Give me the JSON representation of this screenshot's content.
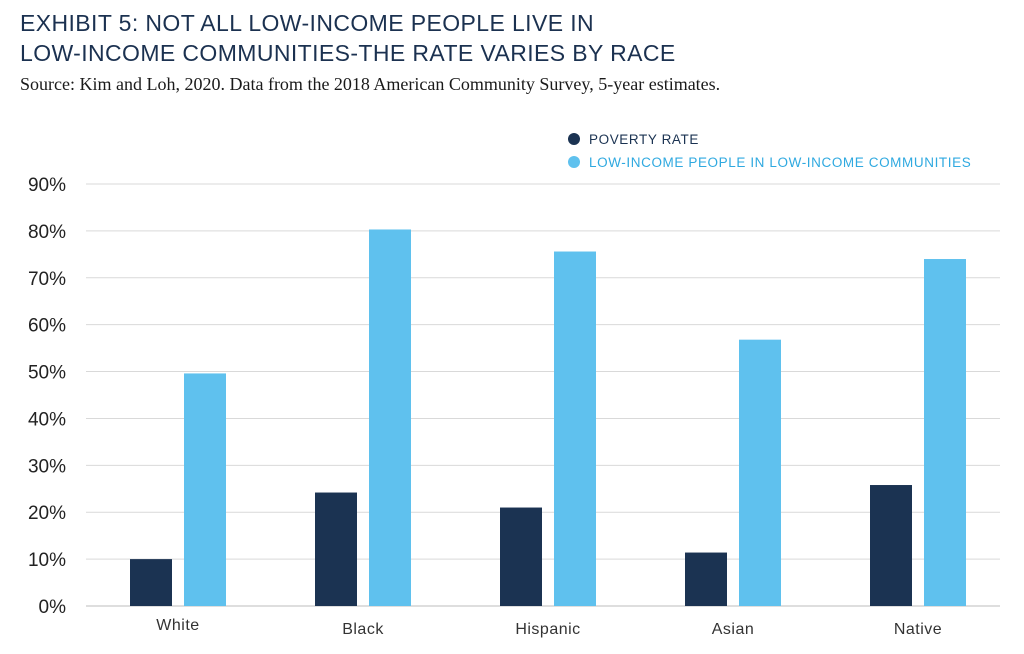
{
  "header": {
    "title_line1": "EXHIBIT 5: NOT ALL LOW-INCOME PEOPLE LIVE IN",
    "title_line2": "LOW-INCOME COMMUNITIES-THE RATE VARIES BY RACE",
    "source": "Source: Kim and Loh, 2020. Data from the 2018 American Community Survey, 5-year estimates."
  },
  "colors": {
    "poverty": "#1b3352",
    "lowincome": "#5fc1ee",
    "grid": "#d9d9d9",
    "legend_poverty_text": "#1b3352",
    "legend_lowincome_text": "#2fa9e0"
  },
  "chart_data": {
    "type": "bar",
    "title": "EXHIBIT 5: NOT ALL LOW-INCOME PEOPLE LIVE IN LOW-INCOME COMMUNITIES-THE RATE VARIES BY RACE",
    "categories": [
      "White",
      "Black",
      "Hispanic",
      "Asian",
      "Native"
    ],
    "series": [
      {
        "name": "POVERTY RATE",
        "values": [
          10,
          24.2,
          21,
          11.4,
          25.8
        ]
      },
      {
        "name": "LOW-INCOME PEOPLE IN LOW-INCOME COMMUNITIES",
        "values": [
          49.6,
          80.3,
          75.6,
          56.8,
          74
        ]
      }
    ],
    "ylim": [
      0,
      90
    ],
    "yticks": [
      0,
      10,
      20,
      30,
      40,
      50,
      60,
      70,
      80,
      90
    ],
    "ytick_labels": [
      "0%",
      "10%",
      "20%",
      "30%",
      "40%",
      "50%",
      "60%",
      "70%",
      "80%",
      "90%"
    ],
    "xlabel": "",
    "ylabel": "",
    "grid": true,
    "legend": "top-right"
  }
}
